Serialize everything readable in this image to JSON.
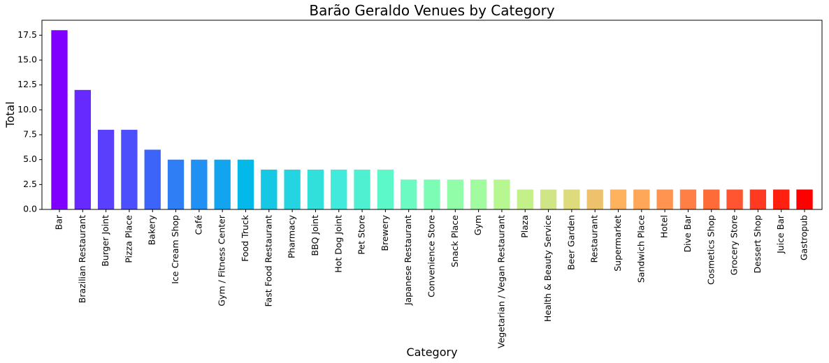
{
  "chart_data": {
    "type": "bar",
    "title": "Barão Geraldo Venues by Category",
    "xlabel": "Category",
    "ylabel": "Total",
    "ylim": [
      0,
      19
    ],
    "yticks": [
      "0.0",
      "2.5",
      "5.0",
      "7.5",
      "10.0",
      "12.5",
      "15.0",
      "17.5"
    ],
    "grid": false,
    "legend": "none",
    "colormap": "rainbow",
    "categories": [
      "Bar",
      "Brazilian Restaurant",
      "Burger Joint",
      "Pizza Place",
      "Bakery",
      "Ice Cream Shop",
      "Café",
      "Gym / Fitness Center",
      "Food Truck",
      "Fast Food Restaurant",
      "Pharmacy",
      "BBQ Joint",
      "Hot Dog Joint",
      "Pet Store",
      "Brewery",
      "Japanese Restaurant",
      "Convenience Store",
      "Snack Place",
      "Gym",
      "Vegetarian / Vegan Restaurant",
      "Plaza",
      "Health & Beauty Service",
      "Beer Garden",
      "Restaurant",
      "Supermarket",
      "Sandwich Place",
      "Hotel",
      "Dive Bar",
      "Cosmetics Shop",
      "Grocery Store",
      "Dessert Shop",
      "Juice Bar",
      "Gastropub"
    ],
    "values": [
      18,
      12,
      8,
      8,
      6,
      5,
      5,
      5,
      5,
      4,
      4,
      4,
      4,
      4,
      4,
      3,
      3,
      3,
      3,
      3,
      2,
      2,
      2,
      2,
      2,
      2,
      2,
      2,
      2,
      2,
      2,
      2,
      2
    ],
    "colors": [
      "#8000ff",
      "#6629fe",
      "#5a3ffd",
      "#4c50fc",
      "#3d64f9",
      "#2f7ef5",
      "#2090f2",
      "#12a4ef",
      "#04b9ea",
      "#16c8e4",
      "#24d4e0",
      "#32e0db",
      "#41eadb",
      "#4ff0d2",
      "#5df8c9",
      "#6bfac1",
      "#7dfcb5",
      "#92fda8",
      "#a0fc9f",
      "#b6f792",
      "#c4f089",
      "#d0e686",
      "#dedb7c",
      "#eec26d",
      "#ffb25e",
      "#ffa758",
      "#ff9450",
      "#ff7f45",
      "#ff6a39",
      "#ff5530",
      "#ff3a20",
      "#ff2010",
      "#ff0000"
    ]
  }
}
